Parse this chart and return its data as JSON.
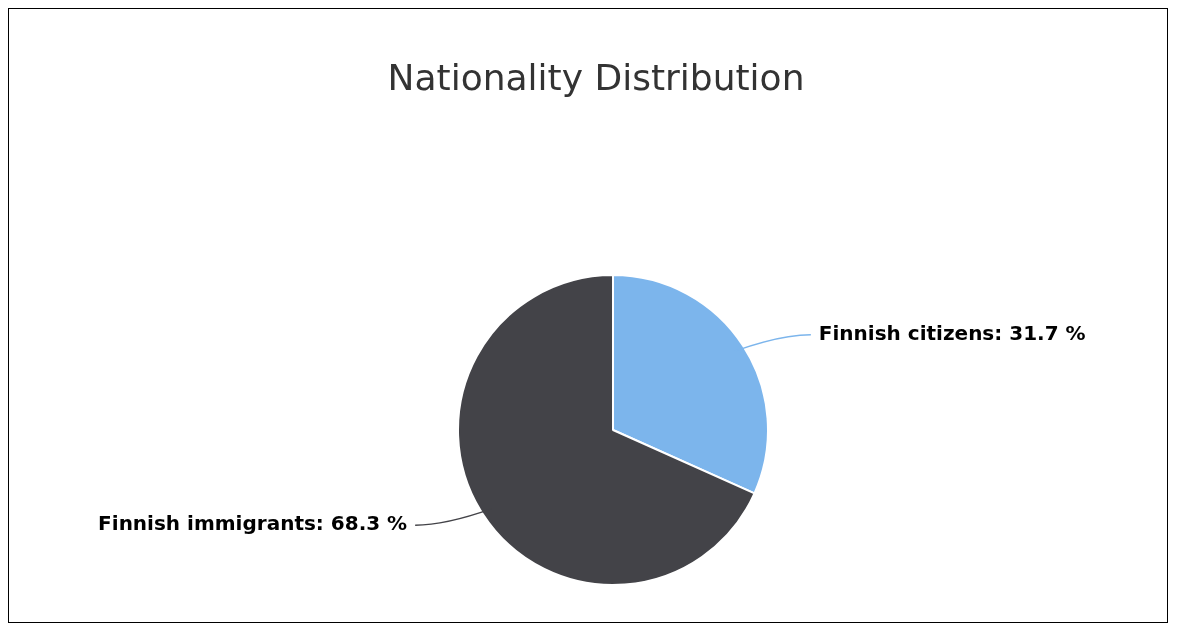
{
  "chart_data": {
    "type": "pie",
    "title": "Nationality Distribution",
    "categories": [
      "Finnish citizens",
      "Finnish immigrants"
    ],
    "values": [
      31.7,
      68.3
    ],
    "value_labels": [
      ": 31.7 %",
      ": 68.3 %"
    ],
    "colors": [
      "#7cb5ec",
      "#434348"
    ],
    "legend": false
  }
}
